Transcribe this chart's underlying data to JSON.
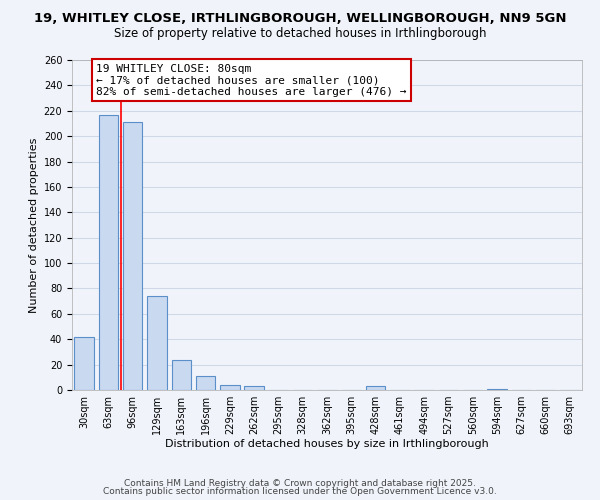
{
  "title1": "19, WHITLEY CLOSE, IRTHLINGBOROUGH, WELLINGBOROUGH, NN9 5GN",
  "title2": "Size of property relative to detached houses in Irthlingborough",
  "xlabel": "Distribution of detached houses by size in Irthlingborough",
  "ylabel": "Number of detached properties",
  "categories": [
    "30sqm",
    "63sqm",
    "96sqm",
    "129sqm",
    "163sqm",
    "196sqm",
    "229sqm",
    "262sqm",
    "295sqm",
    "328sqm",
    "362sqm",
    "395sqm",
    "428sqm",
    "461sqm",
    "494sqm",
    "527sqm",
    "560sqm",
    "594sqm",
    "627sqm",
    "660sqm",
    "693sqm"
  ],
  "values": [
    42,
    217,
    211,
    74,
    24,
    11,
    4,
    3,
    0,
    0,
    0,
    0,
    3,
    0,
    0,
    0,
    0,
    1,
    0,
    0,
    0
  ],
  "bar_color": "#c8d9f0",
  "bar_edge_color": "#5b8fc9",
  "grid_color": "#d0d8e8",
  "background_color": "#f0f4fa",
  "red_line_x": 1.5,
  "annotation_text": "19 WHITLEY CLOSE: 80sqm\n← 17% of detached houses are smaller (100)\n82% of semi-detached houses are larger (476) →",
  "annotation_box_color": "#ffffff",
  "annotation_box_edge": "#cc0000",
  "ylim": [
    0,
    260
  ],
  "yticks": [
    0,
    20,
    40,
    60,
    80,
    100,
    120,
    140,
    160,
    180,
    200,
    220,
    240,
    260
  ],
  "footer1": "Contains HM Land Registry data © Crown copyright and database right 2025.",
  "footer2": "Contains public sector information licensed under the Open Government Licence v3.0.",
  "title_fontsize": 9.5,
  "subtitle_fontsize": 8.5,
  "axis_label_fontsize": 8,
  "tick_fontsize": 7,
  "annotation_fontsize": 8,
  "footer_fontsize": 6.5
}
